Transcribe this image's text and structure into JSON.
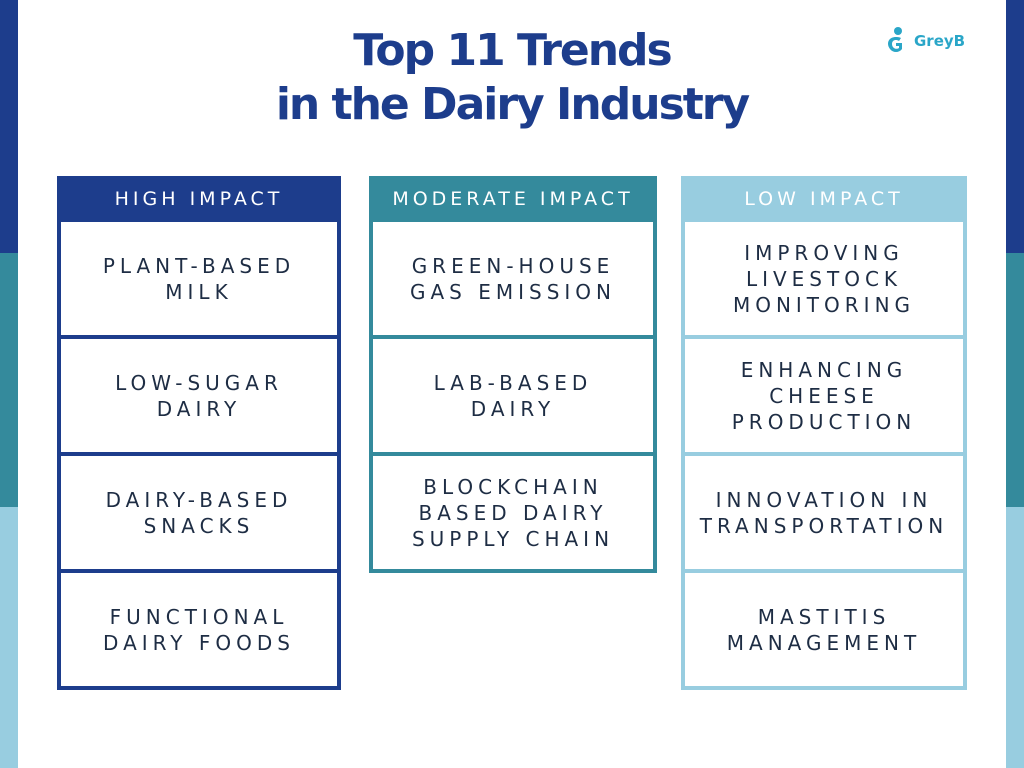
{
  "title": {
    "line1": "Top 11 Trends",
    "line2": "in the Dairy Industry"
  },
  "logo": {
    "text": "GreyB",
    "icon": "greyb-logo-icon",
    "color": "#2aa6c8"
  },
  "colors": {
    "high": "#1d3d8c",
    "moderate": "#348a9c",
    "low": "#98cde0",
    "text": "#1e2d44"
  },
  "columns": [
    {
      "header": "HIGH IMPACT",
      "items": [
        "PLANT-BASED\nMILK",
        "LOW-SUGAR\nDAIRY",
        "DAIRY-BASED\nSNACKS",
        "FUNCTIONAL\nDAIRY FOODS"
      ]
    },
    {
      "header": "MODERATE IMPACT",
      "items": [
        "GREEN-HOUSE\nGAS EMISSION",
        "LAB-BASED\nDAIRY",
        "BLOCKCHAIN\nBASED DAIRY\nSUPPLY CHAIN"
      ]
    },
    {
      "header": "LOW IMPACT",
      "items": [
        "IMPROVING\nLIVESTOCK\nMONITORING",
        "ENHANCING\nCHEESE\nPRODUCTION",
        "INNOVATION IN\nTRANSPORTATION",
        "MASTITIS\nMANAGEMENT"
      ]
    }
  ]
}
